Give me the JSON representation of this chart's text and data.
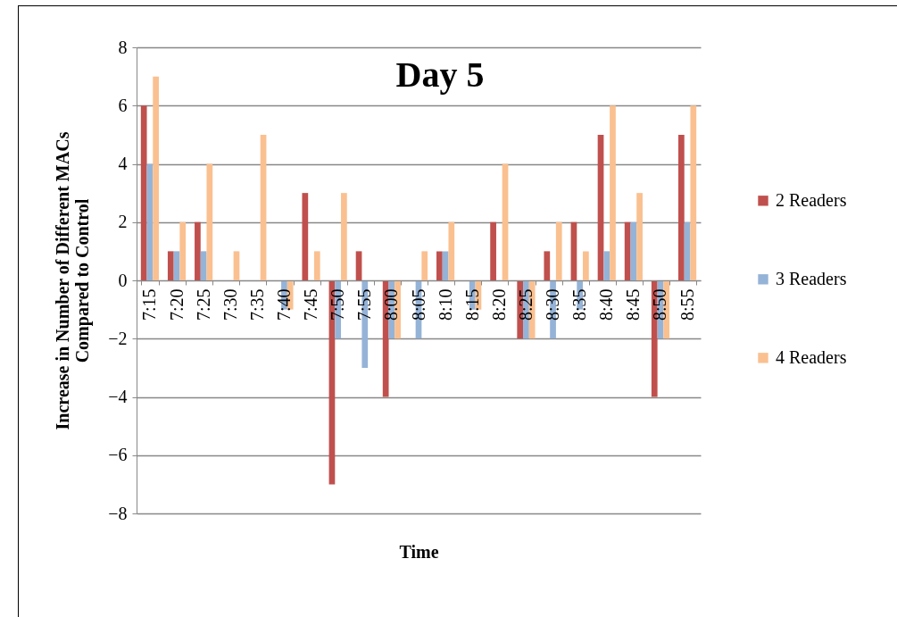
{
  "chart_data": {
    "type": "bar",
    "title": "Day 5",
    "xlabel": "Time",
    "ylabel": "Increase in Number of Different MACs\nCompared to Control",
    "categories": [
      "7:15",
      "7:20",
      "7:25",
      "7:30",
      "7:35",
      "7:40",
      "7:45",
      "7:50",
      "7:55",
      "8:00",
      "8:05",
      "8:10",
      "8:15",
      "8:20",
      "8:25",
      "8:30",
      "8:35",
      "8:40",
      "8:45",
      "8:50",
      "8:55"
    ],
    "series": [
      {
        "name": "2 Readers",
        "color": "#c0504d",
        "values": [
          6,
          1,
          2,
          0,
          0,
          0,
          3,
          -7,
          1,
          -4,
          0,
          1,
          0,
          2,
          -2,
          1,
          2,
          5,
          2,
          -4,
          5
        ]
      },
      {
        "name": "3 Readers",
        "color": "#95b3d7",
        "values": [
          4,
          1,
          1,
          0,
          0,
          -1,
          0,
          -2,
          -3,
          -2,
          -2,
          1,
          -1,
          0,
          -2,
          -2,
          -1,
          1,
          2,
          -2,
          2
        ]
      },
      {
        "name": "4 Readers",
        "color": "#fac090",
        "values": [
          7,
          2,
          4,
          1,
          5,
          -1,
          1,
          3,
          0,
          -2,
          1,
          2,
          -1,
          4,
          -2,
          2,
          1,
          6,
          3,
          -2,
          6
        ]
      }
    ],
    "ylim": [
      -8,
      8
    ],
    "yticks": [
      -8,
      -6,
      -4,
      -2,
      0,
      2,
      4,
      6,
      8
    ],
    "grid": "y",
    "legend": "right"
  }
}
